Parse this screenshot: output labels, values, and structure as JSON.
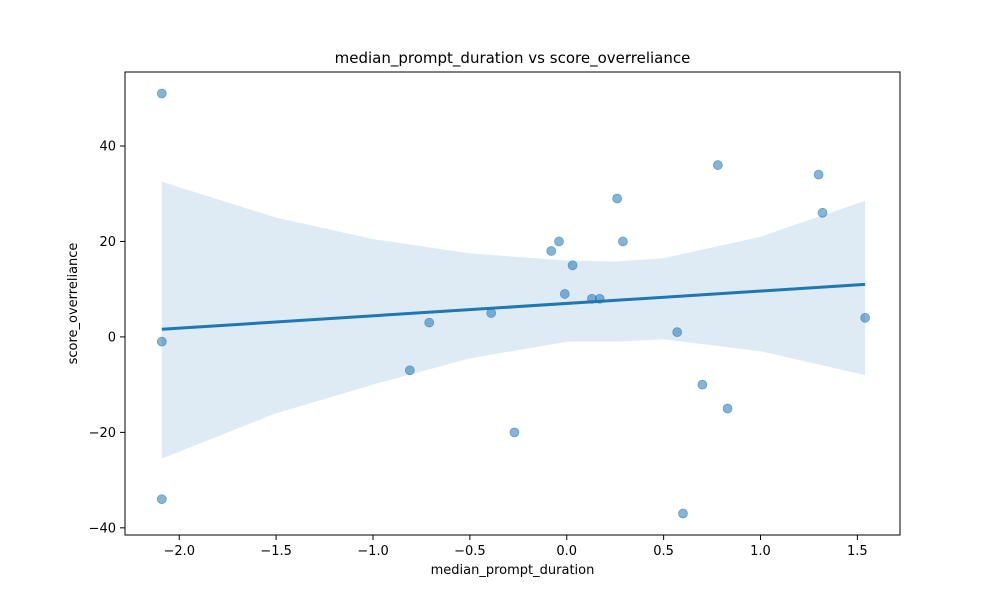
{
  "chart_data": {
    "type": "scatter",
    "title": "median_prompt_duration vs score_overreliance",
    "xlabel": "median_prompt_duration",
    "ylabel": "score_overreliance",
    "xlim": [
      -2.28,
      1.72
    ],
    "ylim": [
      -41.5,
      55.5
    ],
    "xticks": [
      -2.0,
      -1.5,
      -1.0,
      -0.5,
      0.0,
      0.5,
      1.0,
      1.5
    ],
    "xtick_labels": [
      "−2.0",
      "−1.5",
      "−1.0",
      "−0.5",
      "0.0",
      "0.5",
      "1.0",
      "1.5"
    ],
    "yticks": [
      -40,
      -20,
      0,
      20,
      40
    ],
    "ytick_labels": [
      "−40",
      "−20",
      "0",
      "20",
      "40"
    ],
    "grid": false,
    "colors": {
      "points": "#1f77b4",
      "regression_line": "#1f77b4",
      "confidence_band": "#1f77b4"
    },
    "points": {
      "x": [
        -2.09,
        -2.09,
        -2.09,
        -0.81,
        -0.71,
        -0.39,
        -0.27,
        -0.08,
        -0.04,
        -0.01,
        0.03,
        0.13,
        0.17,
        0.26,
        0.29,
        0.57,
        0.6,
        0.7,
        0.78,
        0.83,
        1.3,
        1.32,
        1.54
      ],
      "y": [
        51,
        -1,
        -34,
        -7,
        3,
        5,
        -20,
        18,
        20,
        9,
        15,
        8,
        8,
        29,
        20,
        1,
        -37,
        -10,
        36,
        -15,
        34,
        26,
        4
      ]
    },
    "regression_line": {
      "x": [
        -2.09,
        1.54
      ],
      "y": [
        1.6,
        11.0
      ]
    },
    "confidence_band": {
      "x": [
        -2.09,
        -1.5,
        -1.0,
        -0.5,
        0.0,
        0.25,
        0.5,
        1.0,
        1.54
      ],
      "upper": [
        32.5,
        25.0,
        20.5,
        17.5,
        16.0,
        15.8,
        16.5,
        21.0,
        28.5
      ],
      "lower": [
        -25.5,
        -16.0,
        -10.0,
        -4.5,
        -1.0,
        -1.0,
        -0.5,
        -3.0,
        -8.0
      ]
    }
  }
}
